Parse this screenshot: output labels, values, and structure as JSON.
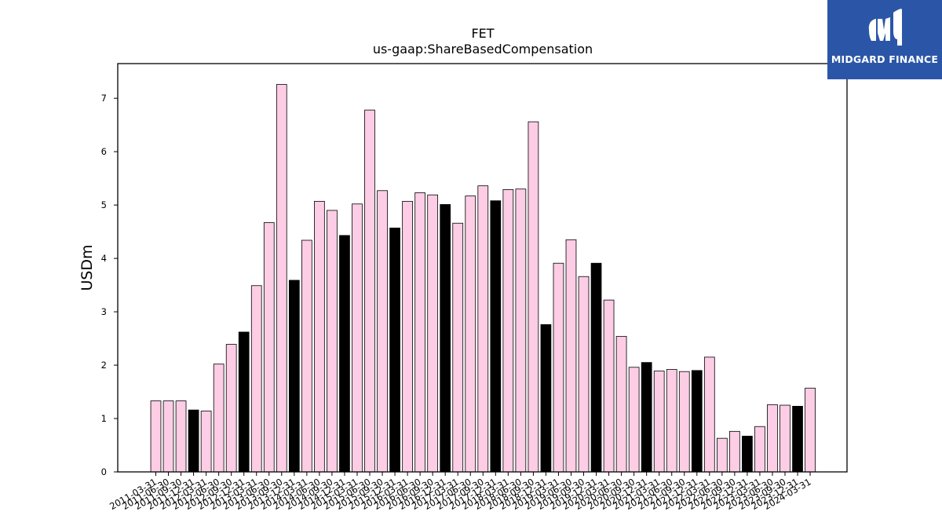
{
  "logo": {
    "text": "MIDGARD FINANCE"
  },
  "colors": {
    "regular_bar": "#fccde5",
    "q4_bar": "#000000",
    "bar_edge": "#000000",
    "logo_bg": "#2b56a8"
  },
  "chart_data": {
    "type": "bar",
    "title": "FET",
    "subtitle": "us-gaap:ShareBasedCompensation",
    "xlabel": "",
    "ylabel": "USDm",
    "ylim": [
      0,
      7.65
    ],
    "yticks": [
      0,
      1,
      2,
      3,
      4,
      5,
      6,
      7
    ],
    "grid": false,
    "legend": "none",
    "highlight_color_meaning": "black bars are December-quarter (Q4) periods",
    "categories": [
      "2011-03-31",
      "2011-06-30",
      "2011-09-30",
      "2011-12-31",
      "2012-03-31",
      "2012-06-30",
      "2012-09-30",
      "2012-12-31",
      "2013-03-31",
      "2013-06-30",
      "2013-09-30",
      "2013-12-31",
      "2014-03-31",
      "2014-06-30",
      "2014-09-30",
      "2014-12-31",
      "2015-03-31",
      "2015-06-30",
      "2015-09-30",
      "2015-12-31",
      "2016-03-31",
      "2016-06-30",
      "2016-09-30",
      "2016-12-31",
      "2017-03-31",
      "2017-06-30",
      "2017-09-30",
      "2017-12-31",
      "2018-03-31",
      "2018-06-30",
      "2018-09-30",
      "2018-12-31",
      "2019-03-31",
      "2019-06-30",
      "2019-09-30",
      "2019-12-31",
      "2020-03-31",
      "2020-06-30",
      "2020-09-30",
      "2020-12-31",
      "2021-03-31",
      "2021-06-30",
      "2021-09-30",
      "2021-12-31",
      "2022-03-31",
      "2022-06-30",
      "2022-09-30",
      "2022-12-31",
      "2023-03-31",
      "2023-06-30",
      "2023-09-30",
      "2023-12-31",
      "2024-03-31"
    ],
    "values": [
      1.33,
      1.33,
      1.33,
      1.16,
      1.14,
      2.02,
      2.39,
      2.62,
      3.49,
      4.67,
      7.26,
      3.59,
      4.34,
      5.07,
      4.9,
      4.43,
      5.02,
      6.78,
      5.27,
      4.57,
      5.07,
      5.23,
      5.19,
      5.01,
      4.66,
      5.17,
      5.36,
      5.08,
      5.29,
      5.3,
      6.56,
      2.76,
      3.91,
      4.35,
      3.66,
      3.91,
      3.22,
      2.54,
      1.96,
      2.05,
      1.89,
      1.92,
      1.88,
      1.9,
      2.15,
      0.63,
      0.76,
      0.67,
      0.85,
      1.26,
      1.25,
      1.23,
      1.57
    ],
    "highlight": [
      false,
      false,
      false,
      true,
      false,
      false,
      false,
      true,
      false,
      false,
      false,
      true,
      false,
      false,
      false,
      true,
      false,
      false,
      false,
      true,
      false,
      false,
      false,
      true,
      false,
      false,
      false,
      true,
      false,
      false,
      false,
      true,
      false,
      false,
      false,
      true,
      false,
      false,
      false,
      true,
      false,
      false,
      false,
      true,
      false,
      false,
      false,
      true,
      false,
      false,
      false,
      true,
      false
    ]
  }
}
